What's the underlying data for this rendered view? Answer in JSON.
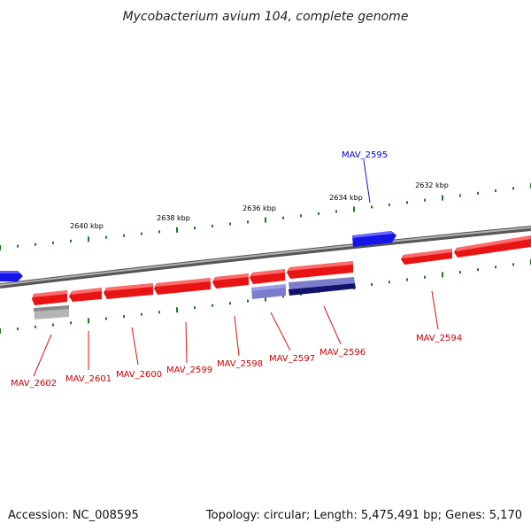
{
  "title": "Mycobacterium avium 104, complete genome",
  "footer": {
    "accession": "Accession: NC_008595",
    "summary": "Topology: circular; Length: 5,475,491 bp; Genes: 5,170"
  },
  "colors": {
    "forward_gene": "#ee1111",
    "reverse_gene": "#1111ee",
    "forward_label": "#cc0000",
    "reverse_label": "#0000cc",
    "tick": "#117711",
    "backbone": "#888888",
    "pseudo": "#aaaaaa",
    "rna_light": "#7777cc",
    "rna_dark": "#111177"
  },
  "ticks": [
    "2640 kbp",
    "2638 kbp",
    "2636 kbp",
    "2634 kbp",
    "2632 kbp"
  ],
  "gene_labels": [
    {
      "text": "MAV_2602",
      "strand": "forward"
    },
    {
      "text": "MAV_2601",
      "strand": "forward"
    },
    {
      "text": "MAV_2600",
      "strand": "forward"
    },
    {
      "text": "MAV_2599",
      "strand": "forward"
    },
    {
      "text": "MAV_2598",
      "strand": "forward"
    },
    {
      "text": "MAV_2597",
      "strand": "forward"
    },
    {
      "text": "MAV_2596",
      "strand": "forward"
    },
    {
      "text": "MAV_2595",
      "strand": "reverse"
    },
    {
      "text": "MAV_2594",
      "strand": "forward"
    }
  ]
}
